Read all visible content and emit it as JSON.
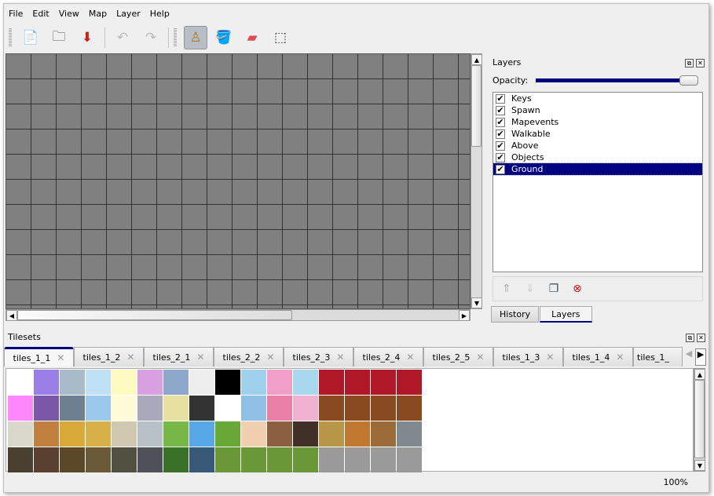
{
  "menu": [
    "File",
    "Edit",
    "View",
    "Map",
    "Layer",
    "Help"
  ],
  "toolbar": [
    {
      "name": "new-map",
      "icon": "new-document-icon",
      "glyph": "📄"
    },
    {
      "name": "open",
      "icon": "folder-icon",
      "glyph": "🗀"
    },
    {
      "name": "save",
      "icon": "save-icon",
      "glyph": "⬇"
    },
    {
      "name": "undo",
      "icon": "undo-icon",
      "glyph": "↶"
    },
    {
      "name": "redo",
      "icon": "redo-icon",
      "glyph": "↷"
    },
    {
      "name": "stamp-brush",
      "icon": "stamp-icon",
      "glyph": "♙"
    },
    {
      "name": "bucket-fill",
      "icon": "bucket-icon",
      "glyph": "🪣"
    },
    {
      "name": "eraser",
      "icon": "eraser-icon",
      "glyph": "▰"
    },
    {
      "name": "rect-select",
      "icon": "selection-icon",
      "glyph": "⬚"
    }
  ],
  "layers": {
    "title": "Layers",
    "opacity_label": "Opacity:",
    "opacity": 100,
    "items": [
      {
        "name": "Keys",
        "visible": true
      },
      {
        "name": "Spawn",
        "visible": true
      },
      {
        "name": "Mapevents",
        "visible": true
      },
      {
        "name": "Walkable",
        "visible": true
      },
      {
        "name": "Above",
        "visible": true
      },
      {
        "name": "Objects",
        "visible": true
      },
      {
        "name": "Ground",
        "visible": true,
        "selected": true
      }
    ],
    "check": "✔"
  },
  "dock_tabs": [
    "History",
    "Layers"
  ],
  "tilesets": {
    "title": "Tilesets",
    "tabs": [
      "tiles_1_1",
      "tiles_1_2",
      "tiles_2_1",
      "tiles_2_2",
      "tiles_2_3",
      "tiles_2_4",
      "tiles_2_5",
      "tiles_1_3",
      "tiles_1_4",
      "tiles_1_"
    ],
    "active": 0,
    "tile_colors": [
      [
        "#ffffff",
        "#9a7fe6",
        "#a9bac8",
        "#bfe0f5",
        "#fffbc0",
        "#d8a0e0",
        "#8ea8cc",
        "#eeeeee",
        "#000000",
        "#9fd0ee",
        "#f0a0c8",
        "#a8d8f0",
        "#b01828",
        "#b01828",
        "#b01828",
        "#b01828"
      ],
      [
        "#ff88ff",
        "#7a5aa8",
        "#6e8090",
        "#9cc8ec",
        "#fffbd8",
        "#a9a9bb",
        "#e8e0a0",
        "#333333",
        "#ffffff",
        "#90c0e6",
        "#e880a8",
        "#f0b0d0",
        "#8a4a20",
        "#8a4a20",
        "#8a4a20",
        "#8a4a20"
      ],
      [
        "#d8d8cc",
        "#c08040",
        "#d8a838",
        "#d8b048",
        "#d0c8b0",
        "#b8c0c8",
        "#78b848",
        "#58a8e8",
        "#68a838",
        "#f0d0b0",
        "#8a6040",
        "#403028",
        "#b89848",
        "#c07830",
        "#9a6a38",
        "#808890"
      ],
      [
        "#4a4030",
        "#5a4030",
        "#5a4828",
        "#6a5a38",
        "#505040",
        "#505058",
        "#3a7028",
        "#385878",
        "#6a9838",
        "#6a9838",
        "#6a9838",
        "#6a9838",
        "#9a9a9a",
        "#9a9a9a",
        "#9a9a9a",
        "#9a9a9a"
      ]
    ]
  },
  "status": {
    "zoom": "100%"
  }
}
